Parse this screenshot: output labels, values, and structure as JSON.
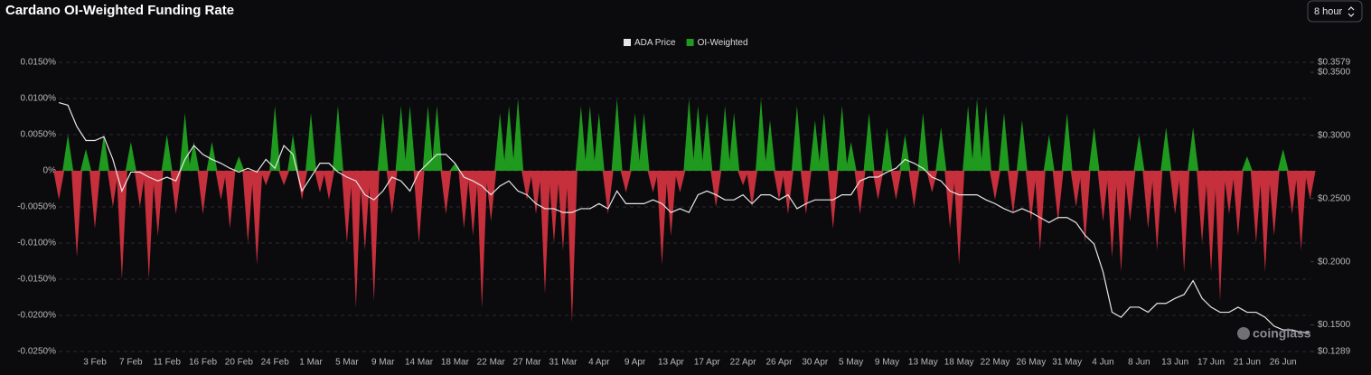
{
  "chart_data": {
    "type": "combo",
    "title": "Cardano OI-Weighted Funding Rate",
    "categories": [
      null,
      null,
      null,
      null,
      "3 Feb",
      null,
      null,
      null,
      "7 Feb",
      null,
      null,
      null,
      "11 Feb",
      null,
      null,
      null,
      "16 Feb",
      null,
      null,
      null,
      "20 Feb",
      null,
      null,
      null,
      "24 Feb",
      null,
      null,
      null,
      "1 Mar",
      null,
      null,
      null,
      "5 Mar",
      null,
      null,
      null,
      "9 Mar",
      null,
      null,
      null,
      "14 Mar",
      null,
      null,
      null,
      "18 Mar",
      null,
      null,
      null,
      "22 Mar",
      null,
      null,
      null,
      "27 Mar",
      null,
      null,
      null,
      "31 Mar",
      null,
      null,
      null,
      "4 Apr",
      null,
      null,
      null,
      "9 Apr",
      null,
      null,
      null,
      "13 Apr",
      null,
      null,
      null,
      "17 Apr",
      null,
      null,
      null,
      "22 Apr",
      null,
      null,
      null,
      "26 Apr",
      null,
      null,
      null,
      "30 Apr",
      null,
      null,
      null,
      "5 May",
      null,
      null,
      null,
      "9 May",
      null,
      null,
      null,
      "13 May",
      null,
      null,
      null,
      "18 May",
      null,
      null,
      null,
      "22 May",
      null,
      null,
      null,
      "26 May",
      null,
      null,
      null,
      "31 May",
      null,
      null,
      null,
      "4 Jun",
      null,
      null,
      null,
      "8 Jun",
      null,
      null,
      null,
      "13 Jun",
      null,
      null,
      null,
      "17 Jun",
      null,
      null,
      null,
      "21 Jun",
      null,
      null,
      null,
      "26 Jun",
      null,
      null,
      null
    ],
    "series": [
      {
        "name": "ADA Price",
        "type": "line",
        "axis": "y2",
        "color": "#e6e6e6",
        "values": [
          0.326,
          0.324,
          0.307,
          0.296,
          0.296,
          0.299,
          0.281,
          0.256,
          0.271,
          0.271,
          0.267,
          0.264,
          0.267,
          0.264,
          0.281,
          0.292,
          0.285,
          0.281,
          0.278,
          0.274,
          0.271,
          0.274,
          0.271,
          0.281,
          0.274,
          0.292,
          0.285,
          0.256,
          0.267,
          0.278,
          0.278,
          0.271,
          0.267,
          0.264,
          0.253,
          0.249,
          0.256,
          0.267,
          0.264,
          0.256,
          0.271,
          0.278,
          0.285,
          0.285,
          0.278,
          0.267,
          0.264,
          0.26,
          0.253,
          0.26,
          0.264,
          0.256,
          0.253,
          0.246,
          0.242,
          0.242,
          0.239,
          0.239,
          0.242,
          0.242,
          0.246,
          0.242,
          0.256,
          0.246,
          0.246,
          0.246,
          0.249,
          0.246,
          0.239,
          0.242,
          0.239,
          0.253,
          0.256,
          0.253,
          0.249,
          0.249,
          0.253,
          0.246,
          0.253,
          0.253,
          0.249,
          0.253,
          0.242,
          0.246,
          0.249,
          0.249,
          0.249,
          0.253,
          0.253,
          0.264,
          0.267,
          0.267,
          0.271,
          0.274,
          0.281,
          0.278,
          0.274,
          0.267,
          0.264,
          0.256,
          0.253,
          0.253,
          0.253,
          0.249,
          0.246,
          0.242,
          0.239,
          0.242,
          0.239,
          0.235,
          0.231,
          0.235,
          0.235,
          0.231,
          0.221,
          0.214,
          0.192,
          0.16,
          0.156,
          0.164,
          0.164,
          0.16,
          0.167,
          0.167,
          0.171,
          0.174,
          0.185,
          0.171,
          0.164,
          0.16,
          0.16,
          0.164,
          0.16,
          0.16,
          0.156,
          0.149,
          0.146,
          0.146,
          0.144,
          0.144
        ]
      },
      {
        "name": "OI-Weighted",
        "type": "area",
        "color": "#1f9a1f",
        "negative_color": "#c62f3c",
        "values": [
          -0.004,
          0.005,
          -0.012,
          0.003,
          -0.008,
          0.005,
          -0.005,
          -0.015,
          0.004,
          -0.005,
          -0.015,
          -0.009,
          0.005,
          -0.006,
          0.008,
          0.004,
          -0.006,
          0.004,
          -0.004,
          -0.008,
          0.002,
          -0.01,
          -0.013,
          -0.002,
          0.009,
          -0.002,
          0.005,
          -0.004,
          0.008,
          -0.003,
          -0.004,
          0.009,
          -0.01,
          -0.019,
          -0.011,
          -0.018,
          0.008,
          -0.006,
          0.009,
          0.009,
          -0.01,
          0.009,
          0.009,
          -0.006,
          0.001,
          -0.008,
          -0.009,
          -0.019,
          -0.007,
          0.008,
          0.009,
          0.01,
          -0.004,
          -0.006,
          -0.017,
          -0.01,
          -0.011,
          -0.021,
          0.009,
          0.009,
          0.008,
          -0.006,
          0.01,
          -0.003,
          0.008,
          0.008,
          -0.003,
          -0.013,
          -0.009,
          -0.003,
          0.01,
          0.009,
          0.008,
          -0.005,
          0.009,
          0.008,
          -0.002,
          -0.005,
          0.01,
          0.007,
          -0.004,
          -0.006,
          0.009,
          -0.006,
          0.007,
          0.008,
          -0.008,
          0.009,
          0.004,
          -0.006,
          0.008,
          -0.004,
          0.006,
          -0.004,
          0.005,
          -0.005,
          0.008,
          -0.003,
          0.006,
          -0.008,
          -0.013,
          0.009,
          0.01,
          0.009,
          -0.004,
          0.008,
          -0.006,
          0.007,
          -0.007,
          -0.011,
          0.005,
          -0.007,
          0.008,
          -0.005,
          -0.01,
          0.006,
          -0.007,
          -0.012,
          -0.014,
          -0.007,
          0.005,
          -0.008,
          -0.011,
          0.006,
          -0.006,
          -0.014,
          0.006,
          -0.01,
          -0.014,
          -0.018,
          -0.006,
          -0.009,
          0.002,
          -0.01,
          -0.014,
          -0.009,
          0.003,
          -0.006,
          -0.011,
          -0.004
        ]
      }
    ],
    "ylim": [
      -0.025,
      0.015
    ],
    "yticks": [
      {
        "value": 0.015,
        "label": "0.0150%"
      },
      {
        "value": 0.01,
        "label": "0.0100%"
      },
      {
        "value": 0.005,
        "label": "0.0050%"
      },
      {
        "value": 0,
        "label": "0%"
      },
      {
        "value": -0.005,
        "label": "-0.0050%"
      },
      {
        "value": -0.01,
        "label": "-0.0100%"
      },
      {
        "value": -0.015,
        "label": "-0.0150%"
      },
      {
        "value": -0.02,
        "label": "-0.0200%"
      },
      {
        "value": -0.025,
        "label": "-0.0250%"
      }
    ],
    "y2lim": [
      0.1289,
      0.3579
    ],
    "y2ticks": [
      {
        "value": 0.3579,
        "label": "$0.3579"
      },
      {
        "value": 0.35,
        "label": "$0.3500"
      },
      {
        "value": 0.3,
        "label": "$0.3000"
      },
      {
        "value": 0.25,
        "label": "$0.2500"
      },
      {
        "value": 0.2,
        "label": "$0.2000"
      },
      {
        "value": 0.15,
        "label": "$0.1500"
      },
      {
        "value": 0.1289,
        "label": "$0.1289"
      }
    ],
    "grid": true,
    "legend": "top",
    "watermark": "coinglass"
  },
  "ui": {
    "interval": "8 hour"
  }
}
